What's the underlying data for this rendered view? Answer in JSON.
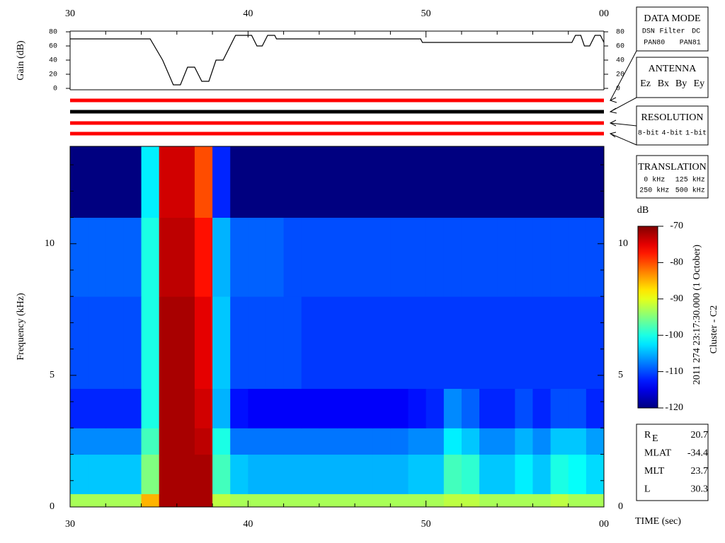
{
  "chart_data": [
    {
      "type": "line",
      "y_label": "Gain (dB)",
      "x": [
        30,
        34.5,
        35.2,
        35.8,
        36.2,
        36.6,
        37.0,
        37.4,
        37.8,
        38.2,
        38.6,
        39.3,
        40.2,
        40.5,
        40.8,
        41.1,
        41.5,
        41.6,
        49.7,
        49.8,
        58.2,
        58.4,
        58.7,
        58.9,
        59.2,
        59.5,
        59.8,
        60
      ],
      "values": [
        70,
        70,
        40,
        5,
        5,
        30,
        30,
        10,
        10,
        40,
        40,
        75,
        75,
        60,
        60,
        75,
        75,
        70,
        70,
        65,
        65,
        75,
        75,
        60,
        60,
        75,
        75,
        65
      ],
      "color": "#000000",
      "xlim": [
        30,
        60
      ],
      "xticks": [
        30,
        40,
        50,
        {
          "value": 60,
          "label": "00"
        }
      ],
      "xminorticks": [
        32,
        34,
        36,
        38,
        42,
        44,
        46,
        48,
        52,
        54,
        56,
        58
      ],
      "ylim": [
        -2,
        81
      ],
      "yticks": [
        0,
        20,
        40,
        60,
        80
      ]
    },
    {
      "type": "heatmap",
      "y_label": "Frequency (kHz)",
      "x_label": "TIME (sec)",
      "x_edges": [
        30,
        31,
        32,
        33,
        34,
        35,
        36,
        37,
        38,
        39,
        40,
        41,
        42,
        43,
        44,
        45,
        46,
        47,
        48,
        49,
        50,
        51,
        52,
        53,
        54,
        55,
        56,
        57,
        58,
        59,
        60
      ],
      "y_edges": [
        0,
        0.5,
        2,
        3,
        4.5,
        8,
        11,
        13.7
      ],
      "z": [
        [
          -93,
          -93,
          -93,
          -93,
          -85,
          -72,
          -72,
          -72,
          -92,
          -93,
          -93,
          -93,
          -93,
          -93,
          -93,
          -93,
          -93,
          -93,
          -93,
          -93,
          -93,
          -92,
          -92,
          -93,
          -93,
          -93,
          -93,
          -92,
          -93,
          -93
        ],
        [
          -104,
          -104,
          -104,
          -104,
          -95,
          -72,
          -72,
          -72,
          -98,
          -104,
          -105,
          -105,
          -105,
          -105,
          -105,
          -105,
          -105,
          -105,
          -105,
          -104,
          -104,
          -98,
          -99,
          -104,
          -104,
          -102,
          -104,
          -100,
          -101,
          -103
        ],
        [
          -107,
          -107,
          -107,
          -107,
          -98,
          -72,
          -72,
          -73,
          -100,
          -108,
          -108,
          -108,
          -108,
          -108,
          -108,
          -108,
          -108,
          -108,
          -108,
          -107,
          -107,
          -102,
          -104,
          -107,
          -107,
          -105,
          -107,
          -104,
          -104,
          -106
        ],
        [
          -112,
          -112,
          -112,
          -112,
          -100,
          -72,
          -72,
          -74,
          -105,
          -113,
          -114,
          -114,
          -114,
          -114,
          -114,
          -114,
          -114,
          -114,
          -114,
          -113,
          -112,
          -107,
          -109,
          -112,
          -112,
          -110,
          -112,
          -110,
          -110,
          -112
        ],
        [
          -110,
          -110,
          -110,
          -110,
          -100,
          -72,
          -72,
          -75,
          -104,
          -110,
          -110,
          -110,
          -110,
          -111,
          -111,
          -111,
          -111,
          -111,
          -111,
          -111,
          -111,
          -111,
          -111,
          -111,
          -111,
          -111,
          -111,
          -111,
          -111,
          -111
        ],
        [
          -109,
          -109,
          -109,
          -109,
          -100,
          -73,
          -73,
          -77,
          -105,
          -109,
          -109,
          -109,
          -110,
          -110,
          -110,
          -110,
          -110,
          -110,
          -110,
          -110,
          -110,
          -110,
          -110,
          -110,
          -110,
          -110,
          -110,
          -110,
          -110,
          -110
        ],
        [
          -120,
          -120,
          -120,
          -120,
          -102,
          -74,
          -74,
          -80,
          -112,
          -120,
          -120,
          -120,
          -120,
          -120,
          -120,
          -120,
          -120,
          -120,
          -120,
          -120,
          -120,
          -120,
          -120,
          -120,
          -120,
          -120,
          -120,
          -120,
          -120,
          -120
        ]
      ],
      "colorscale": "jet",
      "z_label": "dB",
      "zlim": [
        -120,
        -70
      ],
      "zticks": [
        -120,
        -110,
        -100,
        -90,
        -80,
        -70
      ],
      "xlim": [
        30,
        60
      ],
      "xticks": [
        30,
        40,
        50,
        {
          "value": 60,
          "label": "00"
        }
      ],
      "xminorticks": [
        32,
        34,
        36,
        38,
        42,
        44,
        46,
        48,
        52,
        54,
        56,
        58
      ],
      "ylim": [
        0,
        13.7
      ],
      "yticks": [
        0,
        5,
        10
      ],
      "yminorticks": [
        1,
        2,
        3,
        4,
        6,
        7,
        8,
        9,
        11,
        12,
        13
      ]
    }
  ],
  "side_title": [
    "2011 274 23:17:30.000 (1 October)",
    "Cluster - C2"
  ],
  "status_bars": [
    "#ff0000",
    "#000000",
    "#ff0000",
    "#ff0000"
  ],
  "legend_panels": [
    {
      "title": "DATA MODE",
      "rows": [
        [
          {
            "text": "DSN",
            "color": "#ff0000"
          },
          {
            "text": "Filter",
            "color": "#00cc00"
          },
          {
            "text": "DC",
            "color": "#0000ff"
          }
        ],
        [
          {
            "text": "PAN80",
            "color": "#000000"
          },
          {
            "text": "PAN81",
            "color": "#00cccc"
          }
        ]
      ]
    },
    {
      "title": "ANTENNA",
      "rows": [
        [
          {
            "text": "Ez",
            "color": "#ff0000"
          },
          {
            "text": "Bx",
            "color": "#00cc00"
          },
          {
            "text": "By",
            "color": "#0000ff"
          },
          {
            "text": "Ey",
            "color": "#000000"
          }
        ]
      ]
    },
    {
      "title": "RESOLUTION",
      "rows": [
        [
          {
            "text": "8-bit",
            "color": "#ff0000"
          },
          {
            "text": "4-bit",
            "color": "#00cc00"
          },
          {
            "text": "1-bit",
            "color": "#0000ff"
          }
        ]
      ]
    },
    {
      "title": "TRANSLATION",
      "rows": [
        [
          {
            "text": "0 kHz",
            "color": "#ff0000"
          },
          {
            "text": "125 kHz",
            "color": "#00cc00"
          }
        ],
        [
          {
            "text": "250 kHz",
            "color": "#0000ff"
          },
          {
            "text": "500 kHz",
            "color": "#000000"
          }
        ]
      ]
    }
  ],
  "orbit_info": [
    {
      "label": "R",
      "sub": "E",
      "value": 20.7
    },
    {
      "label": "MLAT",
      "value": -34.4
    },
    {
      "label": "MLT",
      "value": 23.7
    },
    {
      "label": "L",
      "value": 30.3
    }
  ]
}
